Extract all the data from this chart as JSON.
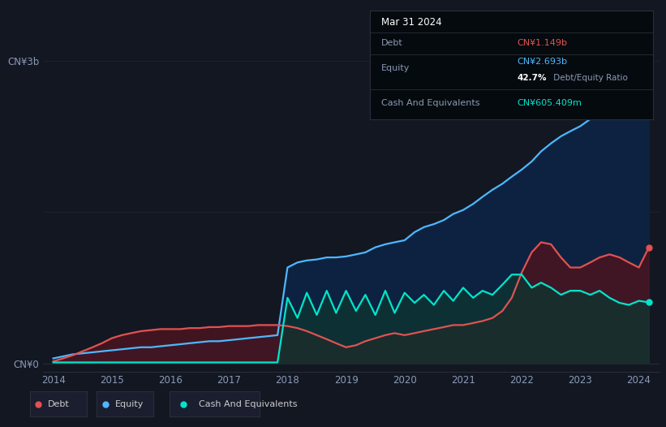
{
  "background_color": "#131722",
  "plot_bg_color": "#131722",
  "title_box": {
    "date": "Mar 31 2024",
    "debt_label": "Debt",
    "debt_value": "CN¥1.149b",
    "equity_label": "Equity",
    "equity_value": "CN¥2.693b",
    "ratio_value": "42.7%",
    "ratio_label": " Debt/Equity Ratio",
    "cash_label": "Cash And Equivalents",
    "cash_value": "CN¥605.409m",
    "debt_color": "#e05252",
    "equity_color": "#4db8ff",
    "cash_color": "#00e5cc",
    "text_color": "#8a9ab5",
    "bg_color": "#050a0e",
    "border_color": "#2a2e39"
  },
  "ylabel": "CN¥3b",
  "y0_label": "CN¥0",
  "x_ticks": [
    "2014",
    "2015",
    "2016",
    "2017",
    "2018",
    "2019",
    "2020",
    "2021",
    "2022",
    "2023",
    "2024"
  ],
  "line_colors": {
    "debt": "#e05252",
    "equity": "#4db8ff",
    "cash": "#00e5cc"
  },
  "fill_colors": {
    "debt": "#4a1520",
    "equity": "#0d2240",
    "cash": "#0d3530"
  },
  "legend": [
    {
      "label": "Debt",
      "color": "#e05252"
    },
    {
      "label": "Equity",
      "color": "#4db8ff"
    },
    {
      "label": "Cash And Equivalents",
      "color": "#00e5cc"
    }
  ],
  "years": [
    2014.0,
    2014.17,
    2014.33,
    2014.5,
    2014.67,
    2014.83,
    2015.0,
    2015.17,
    2015.33,
    2015.5,
    2015.67,
    2015.83,
    2016.0,
    2016.17,
    2016.33,
    2016.5,
    2016.67,
    2016.83,
    2017.0,
    2017.17,
    2017.33,
    2017.5,
    2017.67,
    2017.83,
    2018.0,
    2018.17,
    2018.33,
    2018.5,
    2018.67,
    2018.83,
    2019.0,
    2019.17,
    2019.33,
    2019.5,
    2019.67,
    2019.83,
    2020.0,
    2020.17,
    2020.33,
    2020.5,
    2020.67,
    2020.83,
    2021.0,
    2021.17,
    2021.33,
    2021.5,
    2021.67,
    2021.83,
    2022.0,
    2022.17,
    2022.33,
    2022.5,
    2022.67,
    2022.83,
    2023.0,
    2023.17,
    2023.33,
    2023.5,
    2023.67,
    2023.83,
    2024.0,
    2024.17
  ],
  "equity": [
    0.05,
    0.07,
    0.09,
    0.1,
    0.11,
    0.12,
    0.13,
    0.14,
    0.15,
    0.16,
    0.16,
    0.17,
    0.18,
    0.19,
    0.2,
    0.21,
    0.22,
    0.22,
    0.23,
    0.24,
    0.25,
    0.26,
    0.27,
    0.28,
    0.95,
    1.0,
    1.02,
    1.03,
    1.05,
    1.05,
    1.06,
    1.08,
    1.1,
    1.15,
    1.18,
    1.2,
    1.22,
    1.3,
    1.35,
    1.38,
    1.42,
    1.48,
    1.52,
    1.58,
    1.65,
    1.72,
    1.78,
    1.85,
    1.92,
    2.0,
    2.1,
    2.18,
    2.25,
    2.3,
    2.35,
    2.42,
    2.5,
    2.58,
    2.62,
    2.68,
    2.75,
    2.693
  ],
  "debt": [
    0.02,
    0.05,
    0.08,
    0.12,
    0.16,
    0.2,
    0.25,
    0.28,
    0.3,
    0.32,
    0.33,
    0.34,
    0.34,
    0.34,
    0.35,
    0.35,
    0.36,
    0.36,
    0.37,
    0.37,
    0.37,
    0.38,
    0.38,
    0.38,
    0.37,
    0.35,
    0.32,
    0.28,
    0.24,
    0.2,
    0.16,
    0.18,
    0.22,
    0.25,
    0.28,
    0.3,
    0.28,
    0.3,
    0.32,
    0.34,
    0.36,
    0.38,
    0.38,
    0.4,
    0.42,
    0.45,
    0.52,
    0.65,
    0.9,
    1.1,
    1.2,
    1.18,
    1.05,
    0.95,
    0.95,
    1.0,
    1.05,
    1.08,
    1.05,
    1.0,
    0.95,
    1.149
  ],
  "cash": [
    0.01,
    0.01,
    0.01,
    0.01,
    0.01,
    0.01,
    0.01,
    0.01,
    0.01,
    0.01,
    0.01,
    0.01,
    0.01,
    0.01,
    0.01,
    0.01,
    0.01,
    0.01,
    0.01,
    0.01,
    0.01,
    0.01,
    0.01,
    0.01,
    0.65,
    0.45,
    0.7,
    0.48,
    0.72,
    0.5,
    0.72,
    0.52,
    0.68,
    0.48,
    0.72,
    0.5,
    0.7,
    0.6,
    0.68,
    0.58,
    0.72,
    0.62,
    0.75,
    0.65,
    0.72,
    0.68,
    0.78,
    0.88,
    0.88,
    0.75,
    0.8,
    0.75,
    0.68,
    0.72,
    0.72,
    0.68,
    0.72,
    0.65,
    0.6,
    0.58,
    0.62,
    0.6054
  ]
}
